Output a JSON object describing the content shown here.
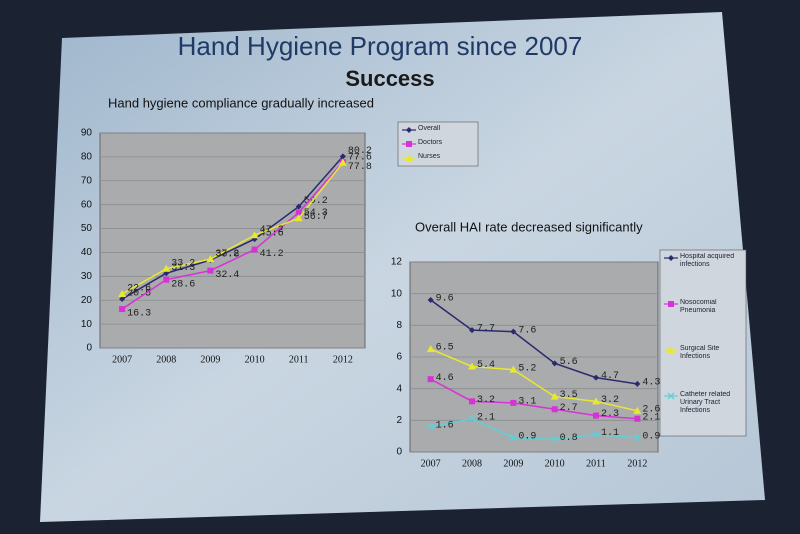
{
  "slide": {
    "title": "Hand Hygiene Program since 2007",
    "subtitle": "Success"
  },
  "chart_data": [
    {
      "type": "line",
      "title": "Hand hygiene compliance gradually increased",
      "categories": [
        "2007",
        "2008",
        "2009",
        "2010",
        "2011",
        "2012"
      ],
      "ylim": [
        0,
        90
      ],
      "yticks": [
        0,
        10,
        20,
        30,
        40,
        50,
        60,
        70,
        80,
        90
      ],
      "grid": true,
      "series": [
        {
          "name": "Overall",
          "color": "#2a2a6e",
          "marker": "diamond",
          "values": [
            20.5,
            31.3,
            36.8,
            45.6,
            59.2,
            80.2
          ]
        },
        {
          "name": "Doctors",
          "color": "#d633d6",
          "marker": "square",
          "values": [
            16.3,
            28.6,
            32.4,
            41.2,
            56.7,
            77.8
          ]
        },
        {
          "name": "Nurses",
          "color": "#e8e830",
          "marker": "triangle",
          "values": [
            22.6,
            33.2,
            37.2,
            47.2,
            54.3,
            77.6
          ]
        }
      ]
    },
    {
      "type": "line",
      "title": "Overall HAI rate decreased significantly",
      "categories": [
        "2007",
        "2008",
        "2009",
        "2010",
        "2011",
        "2012"
      ],
      "ylim": [
        0,
        12
      ],
      "yticks": [
        0,
        2,
        4,
        6,
        8,
        10,
        12
      ],
      "grid": true,
      "series": [
        {
          "name": "Hospital acquired infections",
          "color": "#2a2a6e",
          "marker": "diamond",
          "values": [
            9.6,
            7.7,
            7.6,
            5.6,
            4.7,
            4.3
          ]
        },
        {
          "name": "Nosocomial Pneumonia",
          "color": "#d633d6",
          "marker": "square",
          "values": [
            4.6,
            3.2,
            3.1,
            2.7,
            2.3,
            2.1
          ]
        },
        {
          "name": "Surgical Site Infections",
          "color": "#e8e830",
          "marker": "triangle",
          "values": [
            6.5,
            5.4,
            5.2,
            3.5,
            3.2,
            2.6
          ]
        },
        {
          "name": "Catheter related Urinary Tract Infections",
          "color": "#5fd0d8",
          "marker": "cross",
          "values": [
            1.6,
            2.1,
            0.9,
            0.8,
            1.1,
            0.9
          ]
        }
      ]
    }
  ]
}
